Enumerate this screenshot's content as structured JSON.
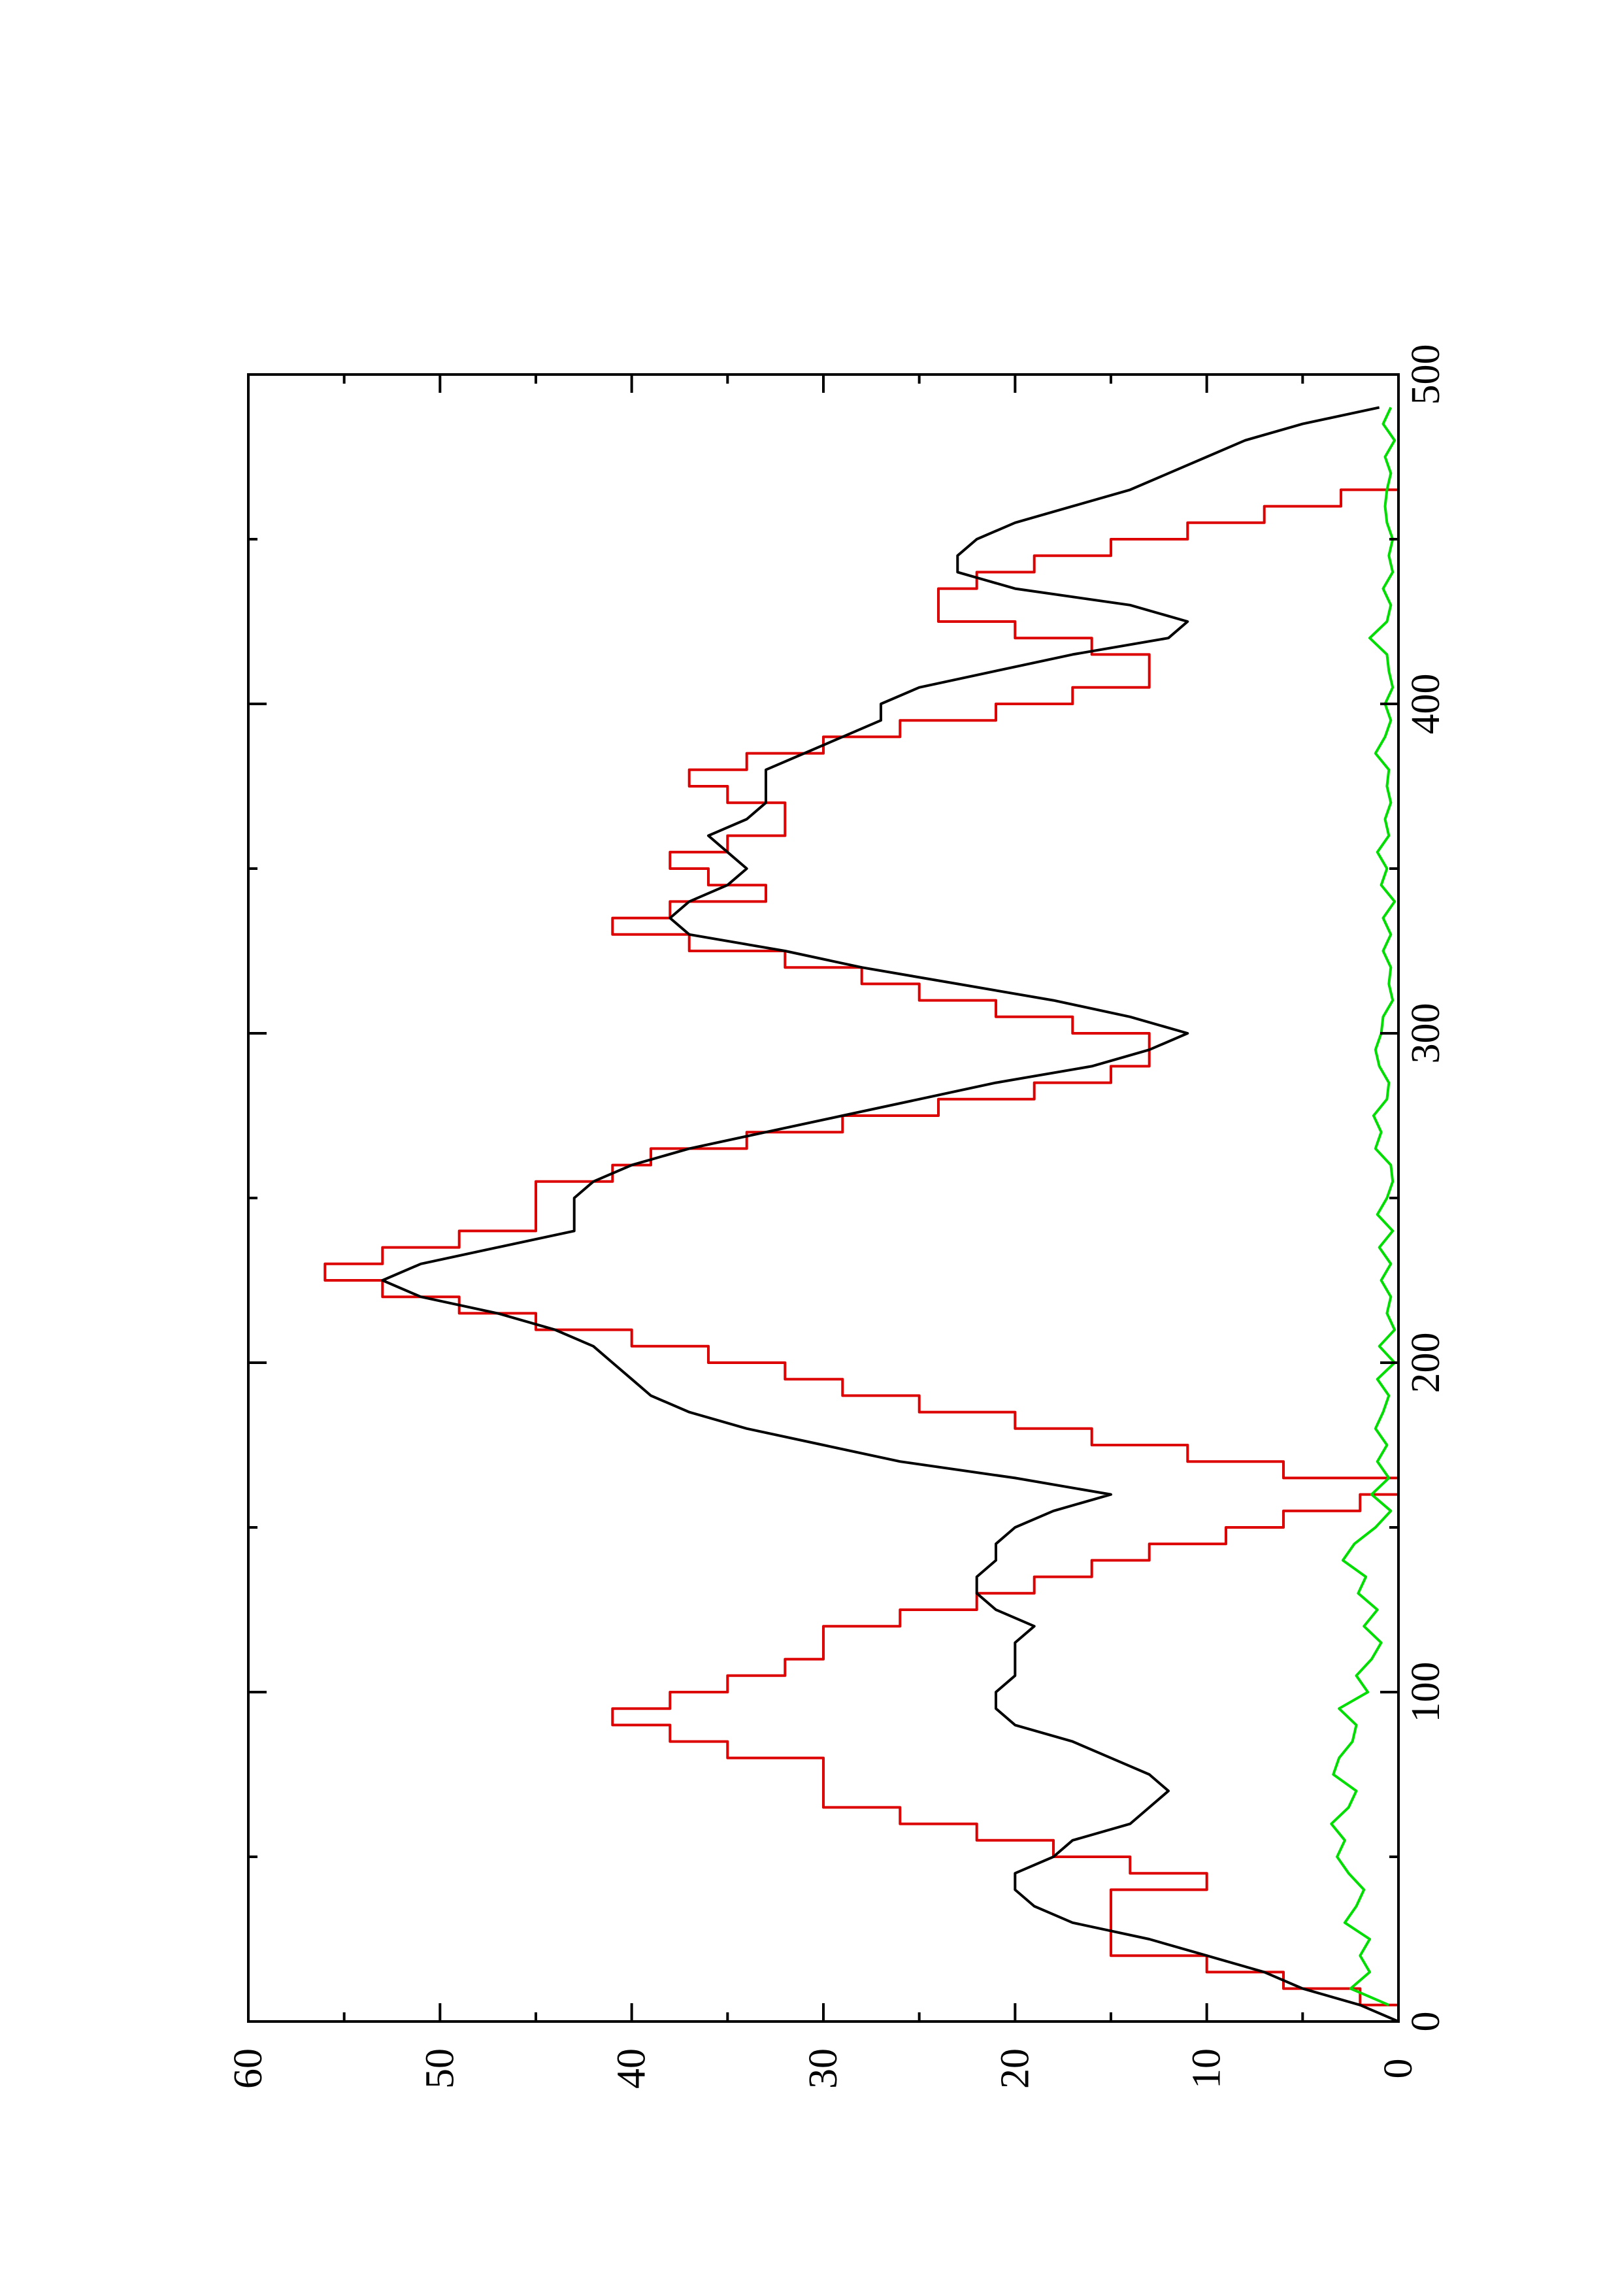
{
  "chart_data": {
    "type": "line",
    "orientation": "rotated-90-ccw",
    "title": "",
    "xlabel": "",
    "ylabel": "",
    "xlim": [
      0,
      500
    ],
    "ylim": [
      0,
      60
    ],
    "x_ticks": [
      0,
      100,
      200,
      300,
      400,
      500
    ],
    "x_minor_ticks": [
      50,
      150,
      250,
      350,
      450
    ],
    "y_ticks": [
      0,
      10,
      20,
      30,
      40,
      50,
      60
    ],
    "y_minor_ticks": [
      5,
      15,
      25,
      35,
      45,
      55
    ],
    "grid": false,
    "legend": "none",
    "series": [
      {
        "color": "#dd0000",
        "style": "step",
        "x": [
          0,
          5,
          10,
          15,
          20,
          25,
          30,
          35,
          40,
          45,
          50,
          55,
          60,
          65,
          70,
          75,
          80,
          85,
          90,
          95,
          100,
          105,
          110,
          115,
          120,
          125,
          130,
          135,
          140,
          145,
          150,
          155,
          160,
          165,
          170,
          175,
          180,
          185,
          190,
          195,
          200,
          205,
          210,
          215,
          220,
          225,
          230,
          235,
          240,
          245,
          250,
          255,
          260,
          265,
          270,
          275,
          280,
          285,
          290,
          295,
          300,
          305,
          310,
          315,
          320,
          325,
          330,
          335,
          340,
          345,
          350,
          355,
          360,
          365,
          370,
          375,
          380,
          385,
          390,
          395,
          400,
          405,
          410,
          415,
          420,
          425,
          430,
          435,
          440,
          445,
          450,
          455,
          460,
          465,
          470,
          475,
          480,
          485
        ],
        "y": [
          0,
          2,
          6,
          10,
          15,
          15,
          15,
          15,
          10,
          14,
          18,
          22,
          26,
          30,
          30,
          30,
          35,
          38,
          41,
          38,
          35,
          32,
          30,
          30,
          26,
          22,
          19,
          16,
          13,
          9,
          6,
          2,
          0,
          6,
          11,
          16,
          20,
          25,
          29,
          32,
          36,
          40,
          45,
          49,
          53,
          56,
          53,
          49,
          45,
          45,
          45,
          41,
          39,
          34,
          29,
          24,
          19,
          15,
          13,
          13,
          17,
          21,
          25,
          28,
          32,
          37,
          41,
          38,
          33,
          36,
          38,
          35,
          32,
          32,
          35,
          37,
          34,
          30,
          26,
          21,
          17,
          13,
          13,
          16,
          20,
          24,
          24,
          22,
          19,
          15,
          11,
          7,
          3,
          0,
          0,
          0,
          0,
          0
        ]
      },
      {
        "color": "#000000",
        "style": "line",
        "x": [
          0,
          5,
          10,
          15,
          20,
          25,
          30,
          35,
          40,
          45,
          50,
          55,
          60,
          65,
          70,
          75,
          80,
          85,
          90,
          95,
          100,
          105,
          110,
          115,
          120,
          125,
          130,
          135,
          140,
          145,
          150,
          155,
          160,
          165,
          170,
          175,
          180,
          185,
          190,
          195,
          200,
          205,
          210,
          215,
          220,
          225,
          230,
          235,
          240,
          245,
          250,
          255,
          260,
          265,
          270,
          275,
          280,
          285,
          290,
          295,
          300,
          305,
          310,
          315,
          320,
          325,
          330,
          335,
          340,
          345,
          350,
          355,
          360,
          365,
          370,
          375,
          380,
          385,
          390,
          395,
          400,
          405,
          410,
          415,
          420,
          425,
          430,
          435,
          440,
          445,
          450,
          455,
          460,
          465,
          470,
          475,
          480,
          485,
          490
        ],
        "y": [
          0,
          2,
          5,
          7,
          10,
          13,
          17,
          19,
          20,
          20,
          18,
          17,
          14,
          13,
          12,
          13,
          15,
          17,
          20,
          21,
          21,
          20,
          20,
          20,
          19,
          21,
          22,
          22,
          21,
          21,
          20,
          18,
          15,
          20,
          26,
          30,
          34,
          37,
          39,
          40,
          41,
          42,
          44,
          47,
          51,
          53,
          51,
          47,
          43,
          43,
          43,
          42,
          40,
          37,
          33,
          29,
          25,
          21,
          16,
          13,
          11,
          14,
          18,
          23,
          28,
          32,
          37,
          38,
          37,
          35,
          34,
          35,
          36,
          34,
          33,
          33,
          33,
          31,
          29,
          27,
          27,
          25,
          21,
          17,
          12,
          11,
          14,
          20,
          23,
          23,
          22,
          20,
          17,
          14,
          12,
          10,
          8,
          5,
          1
        ]
      },
      {
        "color": "#00dd00",
        "style": "line",
        "x": [
          5,
          10,
          15,
          20,
          25,
          30,
          35,
          40,
          45,
          50,
          55,
          60,
          65,
          70,
          75,
          80,
          85,
          90,
          95,
          100,
          105,
          110,
          115,
          120,
          125,
          130,
          135,
          140,
          145,
          150,
          155,
          160,
          165,
          170,
          175,
          180,
          185,
          190,
          195,
          200,
          205,
          210,
          215,
          220,
          225,
          230,
          235,
          240,
          245,
          250,
          255,
          260,
          265,
          270,
          275,
          280,
          285,
          290,
          295,
          300,
          305,
          310,
          315,
          320,
          325,
          330,
          335,
          340,
          345,
          350,
          355,
          360,
          365,
          370,
          375,
          380,
          385,
          390,
          395,
          400,
          405,
          410,
          415,
          420,
          425,
          430,
          435,
          440,
          445,
          450,
          455,
          460,
          465,
          470,
          475,
          480,
          485,
          490
        ],
        "y": [
          0.5,
          2.5,
          1.5,
          2,
          1.5,
          2.8,
          2.2,
          1.8,
          2.6,
          3.2,
          2.8,
          3.5,
          2.6,
          2.2,
          3.4,
          3.1,
          2.4,
          2.2,
          3.1,
          1.6,
          2.2,
          1.4,
          0.9,
          1.8,
          1.1,
          2.1,
          1.7,
          2.9,
          2.3,
          1.2,
          0.4,
          1.4,
          0.5,
          1.1,
          0.6,
          1.2,
          0.8,
          0.5,
          1.1,
          0.2,
          1,
          0.2,
          0.6,
          0.4,
          0.9,
          0.4,
          1,
          0.3,
          1.1,
          0.6,
          0.3,
          0.4,
          1.2,
          0.9,
          1.3,
          0.6,
          0.5,
          1,
          1.2,
          0.9,
          0.8,
          0.3,
          0.5,
          0.4,
          0.8,
          0.4,
          0.8,
          0.2,
          0.9,
          0.6,
          1.1,
          0.5,
          0.7,
          0.4,
          0.6,
          0.5,
          1.2,
          0.7,
          0.4,
          0.7,
          0.3,
          0.5,
          0.6,
          1.5,
          0.6,
          0.4,
          0.8,
          0.3,
          0.5,
          0.3,
          0.6,
          0.7,
          0.6,
          0.4,
          0.7,
          0.2,
          0.8,
          0.4
        ]
      }
    ]
  }
}
